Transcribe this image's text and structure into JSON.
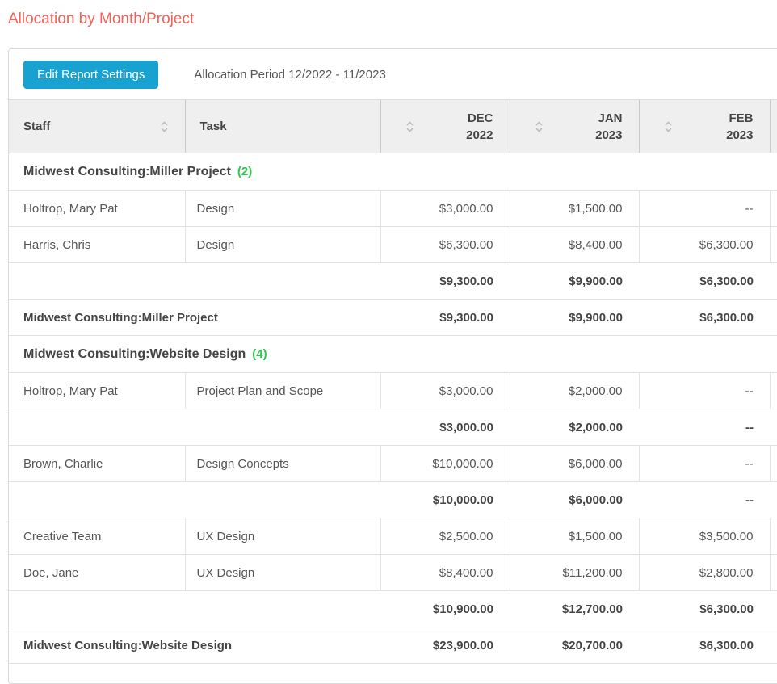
{
  "page": {
    "title": "Allocation by Month/Project"
  },
  "toolbar": {
    "edit_button": "Edit Report Settings",
    "period_label": "Allocation Period 12/2022 - 11/2023"
  },
  "colors": {
    "title": "#f0635a",
    "button_bg": "#18a2d2",
    "count_green": "#2cc84e",
    "header_bg": "#efefef"
  },
  "table": {
    "columns": [
      {
        "id": "staff",
        "label": "Staff",
        "sublabel": "",
        "sortable": true,
        "align": "left"
      },
      {
        "id": "task",
        "label": "Task",
        "sublabel": "",
        "sortable": false,
        "align": "left"
      },
      {
        "id": "dec",
        "label": "DEC",
        "sublabel": "2022",
        "sortable": true,
        "align": "right"
      },
      {
        "id": "jan",
        "label": "JAN",
        "sublabel": "2023",
        "sortable": true,
        "align": "right"
      },
      {
        "id": "feb",
        "label": "FEB",
        "sublabel": "2023",
        "sortable": true,
        "align": "right"
      }
    ],
    "rows": [
      {
        "type": "group",
        "name": "Midwest Consulting:Miller Project",
        "count": "(2)"
      },
      {
        "type": "data",
        "staff": "Holtrop, Mary Pat",
        "task": "Design",
        "values": [
          "$3,000.00",
          "$1,500.00",
          "--"
        ]
      },
      {
        "type": "data",
        "staff": "Harris, Chris",
        "task": "Design",
        "values": [
          "$6,300.00",
          "$8,400.00",
          "$6,300.00"
        ]
      },
      {
        "type": "subtotal",
        "values": [
          "$9,300.00",
          "$9,900.00",
          "$6,300.00"
        ]
      },
      {
        "type": "total",
        "name": "Midwest Consulting:Miller Project",
        "values": [
          "$9,300.00",
          "$9,900.00",
          "$6,300.00"
        ]
      },
      {
        "type": "group",
        "name": "Midwest Consulting:Website Design",
        "count": "(4)"
      },
      {
        "type": "data",
        "staff": "Holtrop, Mary Pat",
        "task": "Project Plan and Scope",
        "values": [
          "$3,000.00",
          "$2,000.00",
          "--"
        ]
      },
      {
        "type": "subtotal",
        "values": [
          "$3,000.00",
          "$2,000.00",
          "--"
        ]
      },
      {
        "type": "data",
        "staff": "Brown, Charlie",
        "task": "Design Concepts",
        "values": [
          "$10,000.00",
          "$6,000.00",
          "--"
        ]
      },
      {
        "type": "subtotal",
        "values": [
          "$10,000.00",
          "$6,000.00",
          "--"
        ]
      },
      {
        "type": "data",
        "staff": "Creative Team",
        "task": "UX Design",
        "values": [
          "$2,500.00",
          "$1,500.00",
          "$3,500.00"
        ]
      },
      {
        "type": "data",
        "staff": "Doe, Jane",
        "task": "UX Design",
        "values": [
          "$8,400.00",
          "$11,200.00",
          "$2,800.00"
        ]
      },
      {
        "type": "subtotal",
        "values": [
          "$10,900.00",
          "$12,700.00",
          "$6,300.00"
        ]
      },
      {
        "type": "total",
        "name": "Midwest Consulting:Website Design",
        "values": [
          "$23,900.00",
          "$20,700.00",
          "$6,300.00"
        ]
      }
    ]
  }
}
